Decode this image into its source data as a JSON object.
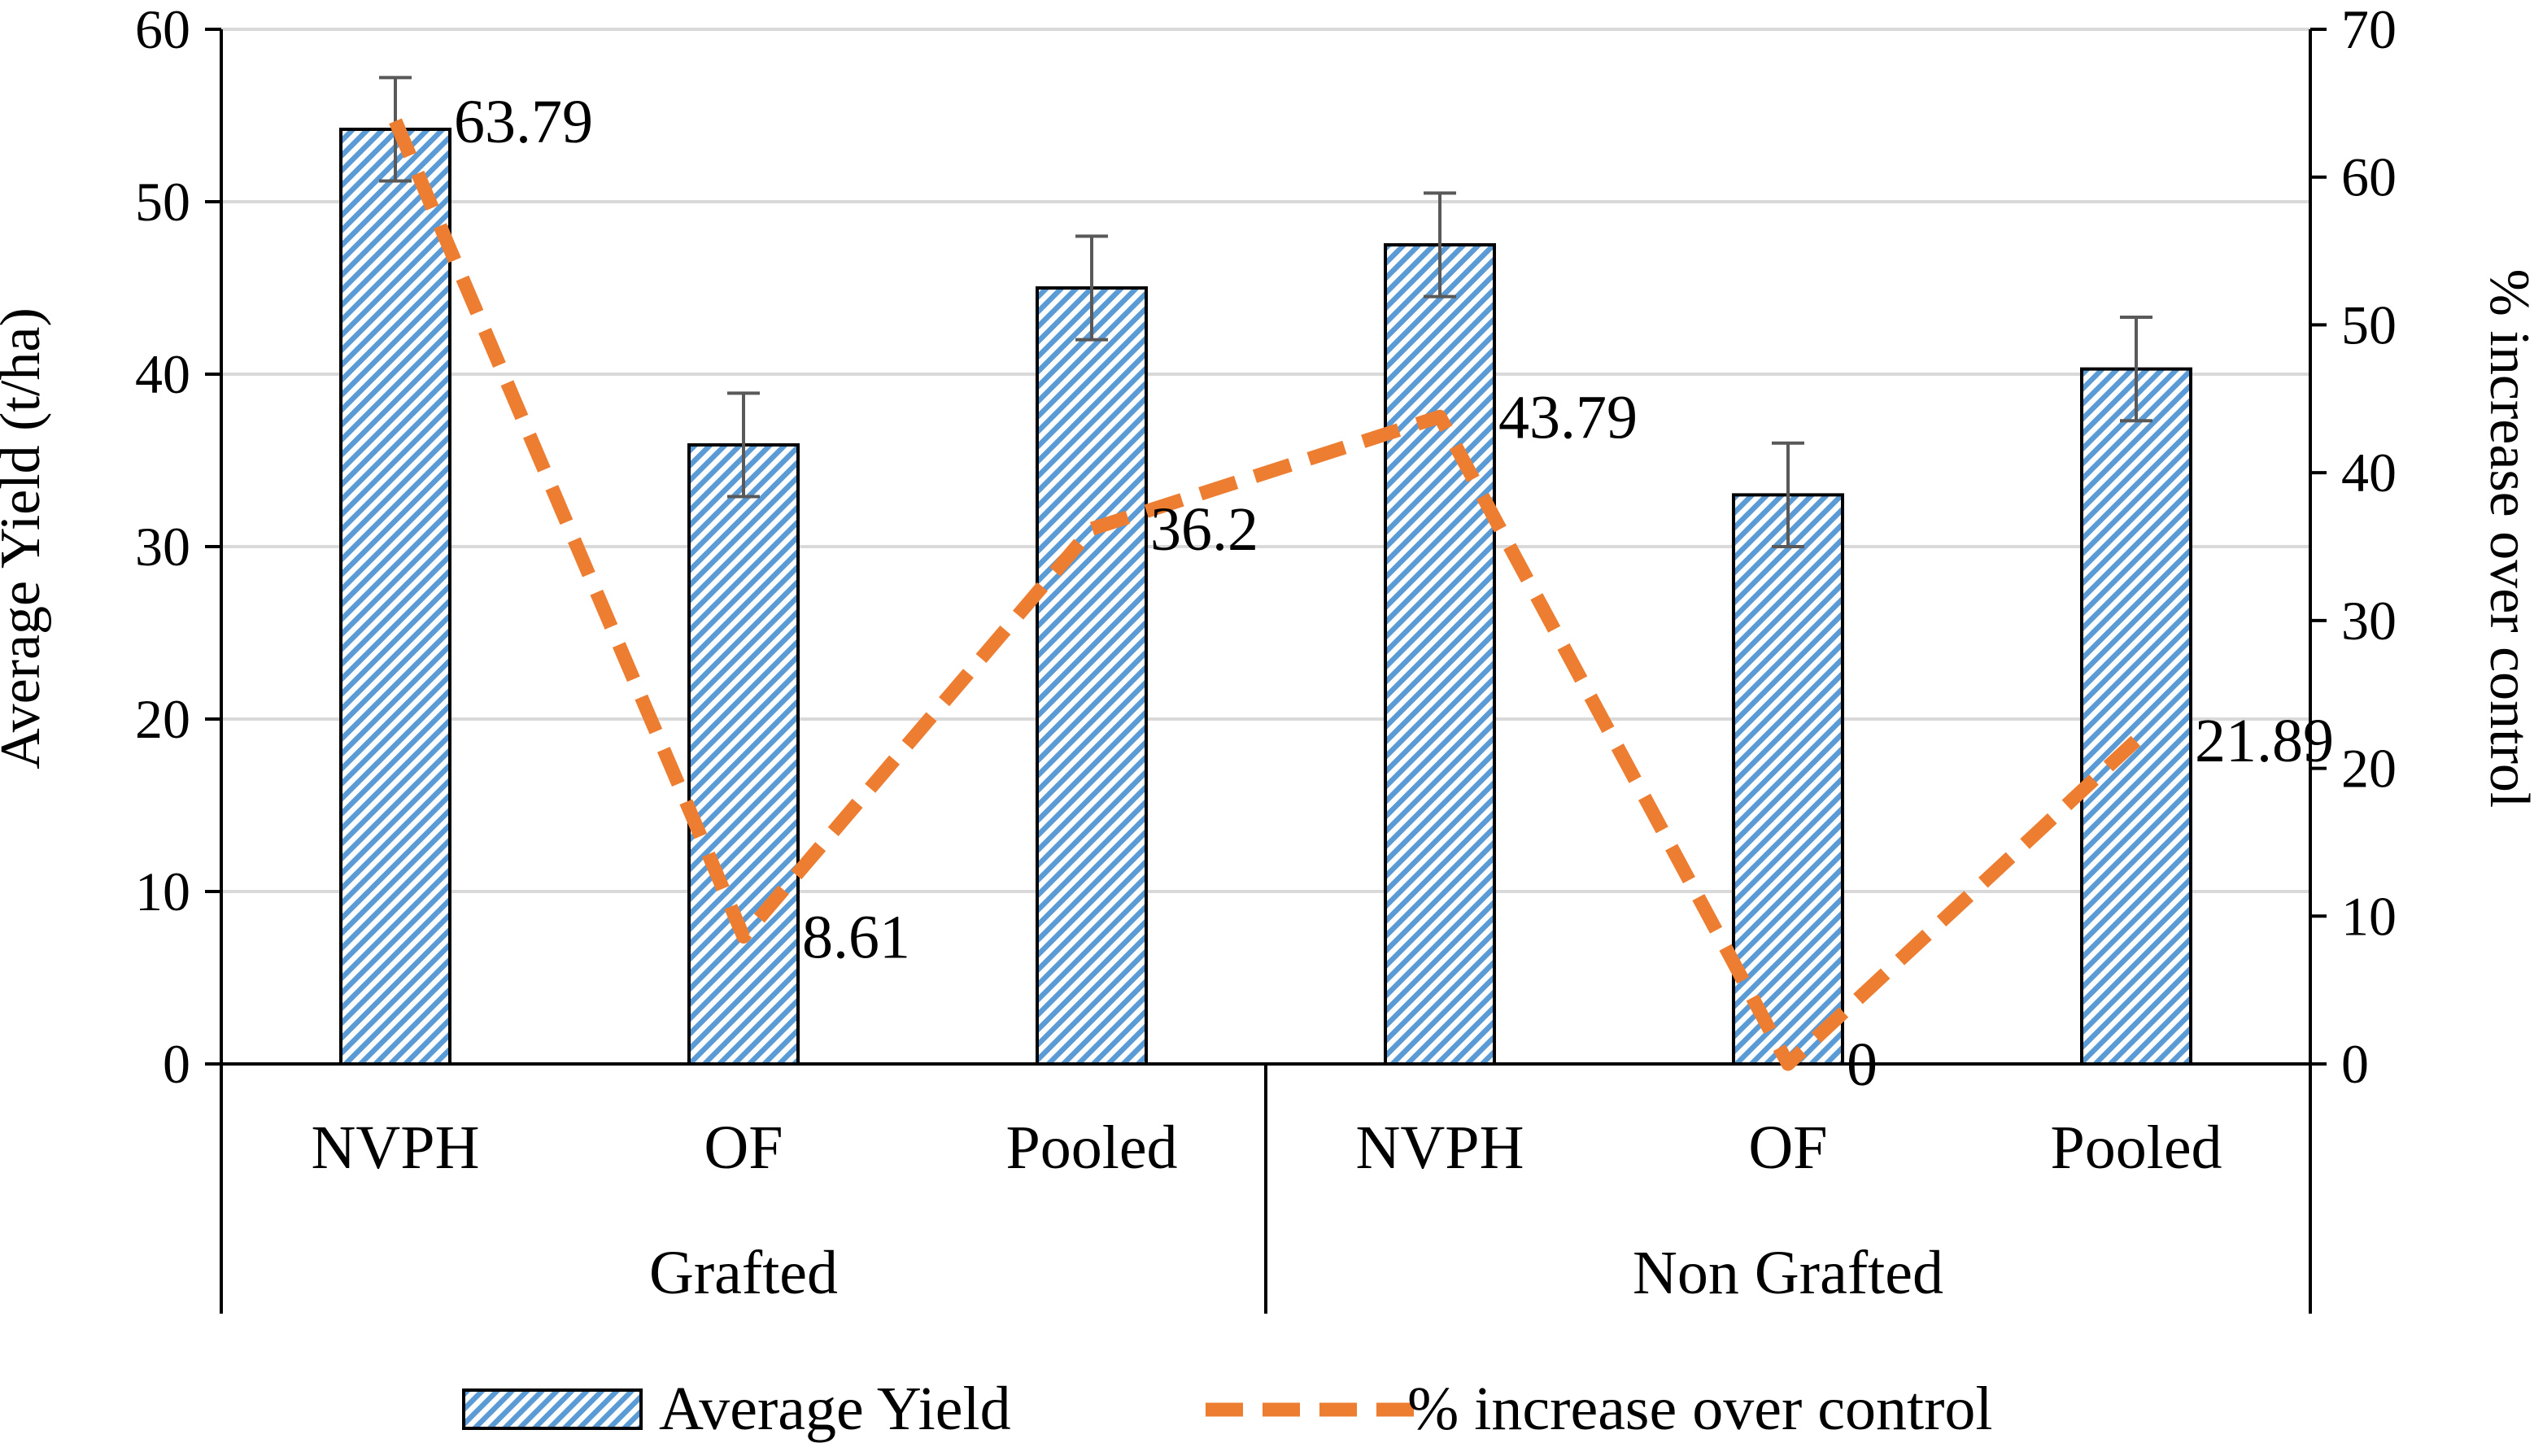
{
  "chart_data": {
    "type": "bar+line",
    "title": "",
    "groups": [
      "Grafted",
      "Non Grafted"
    ],
    "categories": [
      "NVPH",
      "OF",
      "Pooled",
      "NVPH",
      "OF",
      "Pooled"
    ],
    "series": [
      {
        "name": "Average Yield",
        "type": "bar",
        "axis": "left",
        "values": [
          54.2,
          35.9,
          45.0,
          47.5,
          33.0,
          40.3
        ],
        "error": [
          3.0,
          3.0,
          3.0,
          3.0,
          3.0,
          3.0
        ],
        "color": "#5B9BD5"
      },
      {
        "name": "% increase over control",
        "type": "line",
        "style": "dashed",
        "axis": "right",
        "values": [
          63.79,
          8.61,
          36.2,
          43.79,
          0,
          21.89
        ],
        "data_labels": [
          "63.79",
          "8.61",
          "36.2",
          "43.79",
          "0",
          "21.89"
        ],
        "color": "#ED7D31"
      }
    ],
    "y_left": {
      "label": "Average Yield (t/ha)",
      "range": [
        0,
        60
      ],
      "ticks": [
        "0",
        "10",
        "20",
        "30",
        "40",
        "50",
        "60"
      ]
    },
    "y_right": {
      "label": "% increase over control",
      "range": [
        0,
        70
      ],
      "ticks": [
        "0",
        "10",
        "20",
        "30",
        "40",
        "50",
        "60",
        "70"
      ]
    },
    "grid": true,
    "legend": "bottom"
  },
  "colors": {
    "bar_fill": "#5B9BD5",
    "line": "#ED7D31",
    "grid": "#D9D9D9",
    "axis": "#000000",
    "error_bar": "#595959"
  }
}
